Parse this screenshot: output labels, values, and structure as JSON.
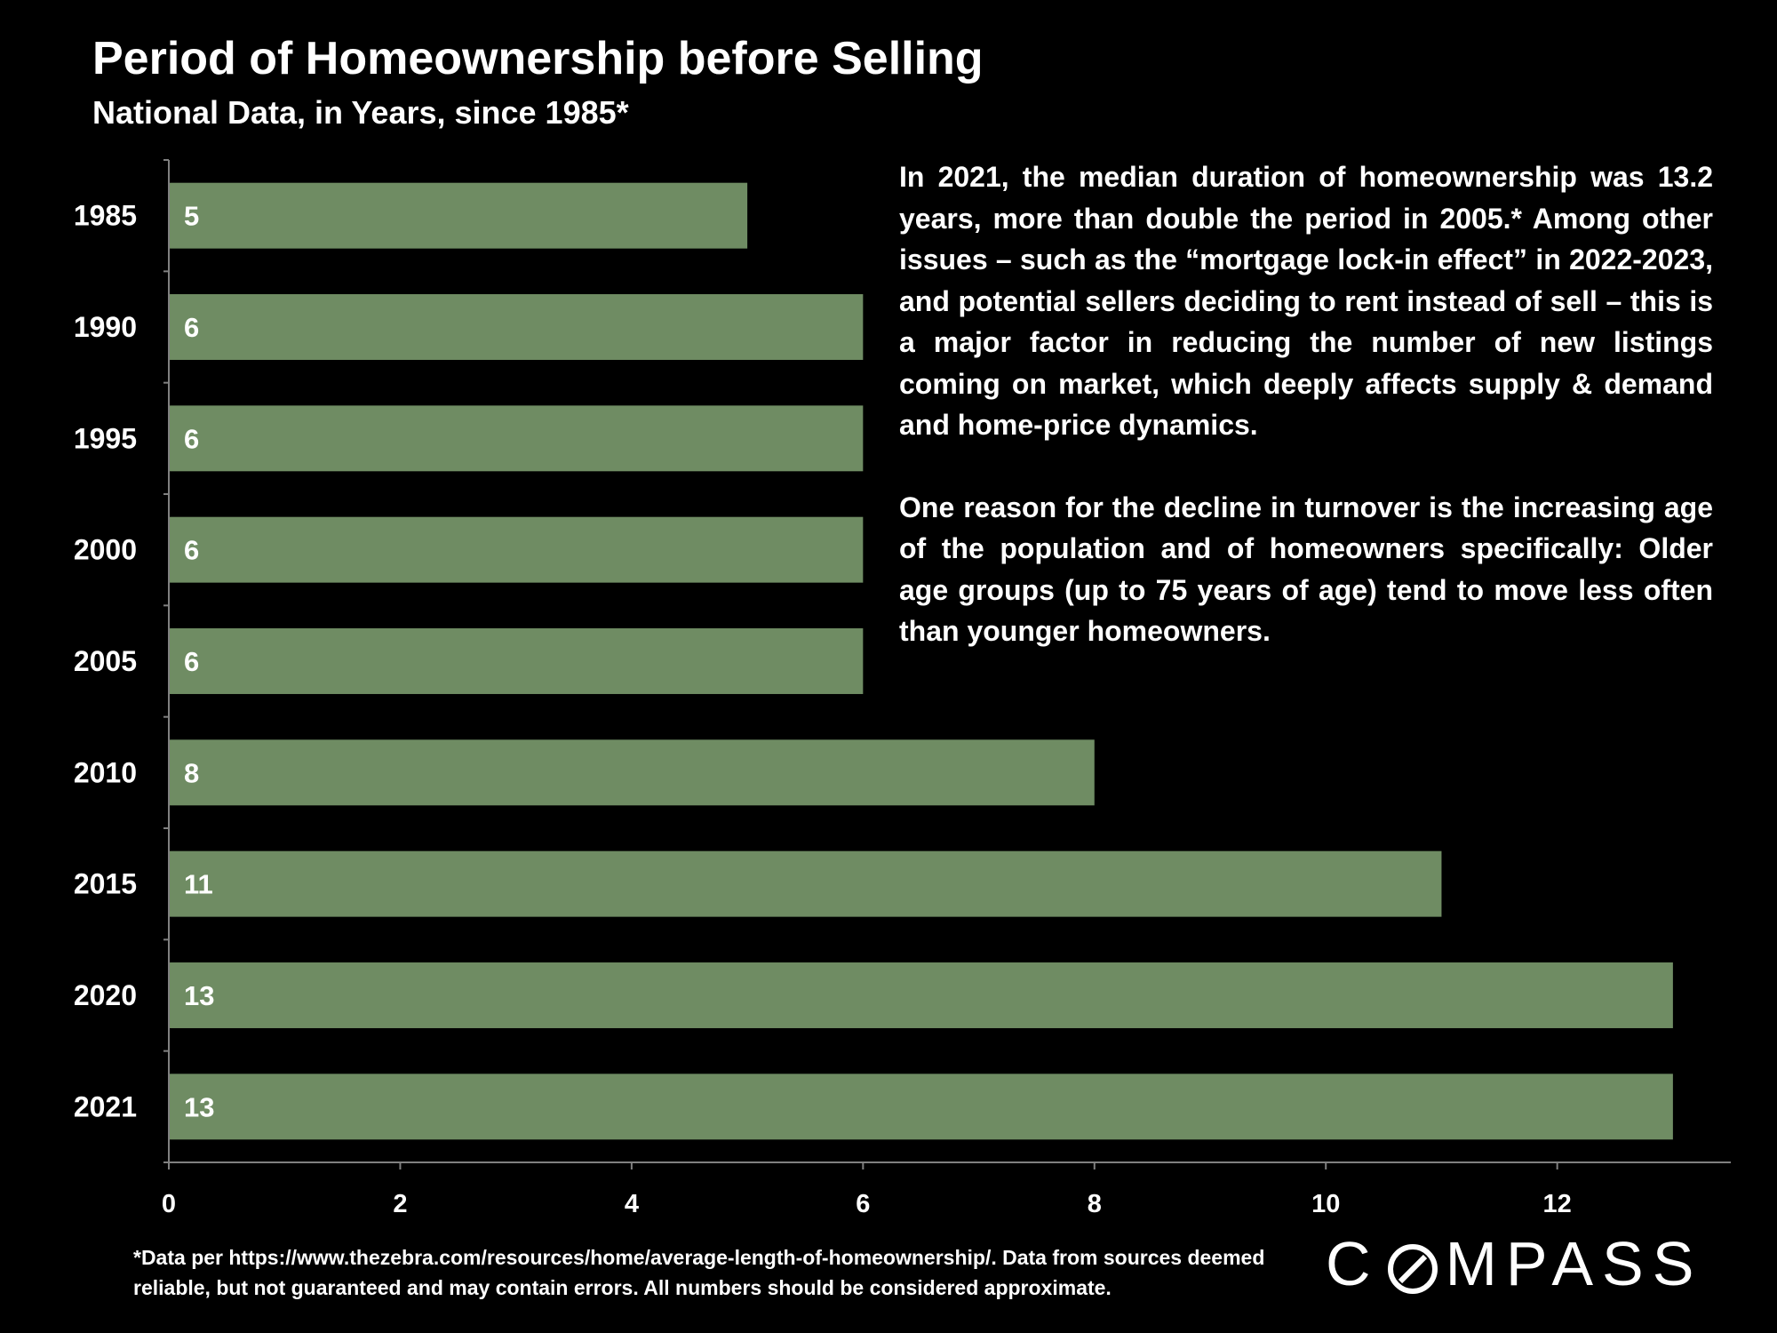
{
  "header": {
    "title": "Period of Homeownership before Selling",
    "subtitle": "National Data, in Years, since 1985*"
  },
  "commentary": {
    "paragraph1": "In 2021, the median duration of homeownership was 13.2 years, more than double the period in 2005.* Among other issues – such as the “mortgage lock-in effect” in 2022-2023, and potential sellers deciding to rent instead of sell – this is a major factor in reducing the number of new listings coming on market, which deeply affects supply & demand and home-price dynamics.",
    "paragraph2": "One reason for the decline in turnover is the increasing age of the population and of homeowners specifically: Older age groups (up to 75 years of age) tend to move less often than younger homeowners."
  },
  "footnote": "*Data per https://www.thezebra.com/resources/home/average-length-of-homeownership/. Data from sources deemed reliable, but not guaranteed and may contain errors. All numbers should be considered approximate.",
  "logo": {
    "text_before": "C",
    "text_after": "MPASS"
  },
  "colors": {
    "background": "#000000",
    "bar": "#6f8c63",
    "text": "#ffffff",
    "axis": "#808080"
  },
  "chart_data": {
    "type": "bar",
    "orientation": "horizontal",
    "categories": [
      "1985",
      "1990",
      "1995",
      "2000",
      "2005",
      "2010",
      "2015",
      "2020",
      "2021"
    ],
    "values": [
      5,
      6,
      6,
      6,
      6,
      8,
      11,
      13,
      13
    ],
    "data_labels": [
      "5",
      "6",
      "6",
      "6",
      "6",
      "8",
      "11",
      "13",
      "13"
    ],
    "xlim": [
      0,
      13.5
    ],
    "xticks": [
      0,
      2,
      4,
      6,
      8,
      10,
      12
    ],
    "grid": false,
    "legend": "none"
  }
}
